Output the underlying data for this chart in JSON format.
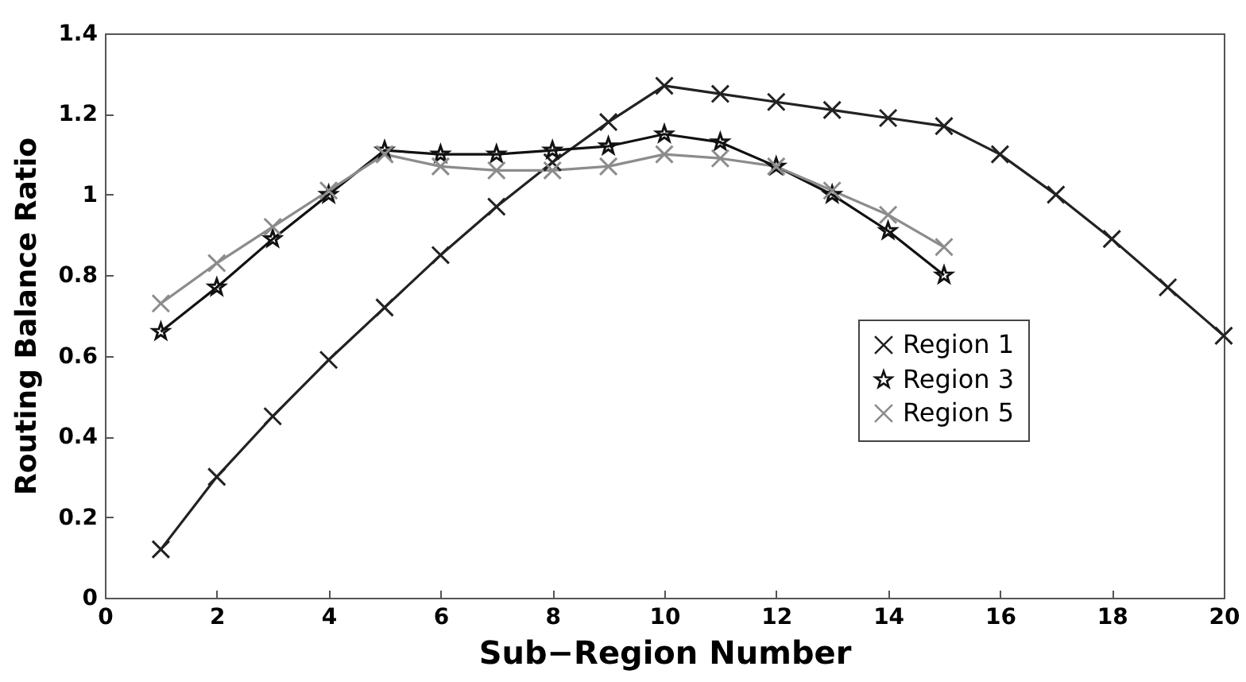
{
  "chart_data": {
    "type": "line",
    "xlabel": "Sub−Region Number",
    "ylabel": "Routing Balance Ratio",
    "xlim": [
      0,
      20
    ],
    "xticks": [
      0,
      2,
      4,
      6,
      8,
      10,
      12,
      14,
      16,
      18,
      20
    ],
    "ylim": [
      0,
      1.4
    ],
    "yticks": [
      0,
      0.2,
      0.4,
      0.6,
      0.8,
      1,
      1.2,
      1.4
    ],
    "grid": false,
    "legend": "right",
    "series": [
      {
        "name": "Region 1",
        "color": "#222222",
        "marker": "cross",
        "x": [
          1,
          2,
          3,
          4,
          5,
          6,
          7,
          8,
          9,
          10,
          11,
          12,
          13,
          14,
          15,
          16,
          17,
          18,
          19,
          20
        ],
        "values": [
          0.12,
          0.3,
          0.45,
          0.59,
          0.72,
          0.85,
          0.97,
          1.08,
          1.18,
          1.27,
          1.25,
          1.23,
          1.21,
          1.19,
          1.17,
          1.1,
          1.0,
          0.89,
          0.77,
          0.65
        ]
      },
      {
        "name": "Region 3",
        "color": "#111111",
        "marker": "star",
        "x": [
          1,
          2,
          3,
          4,
          5,
          6,
          7,
          8,
          9,
          10,
          11,
          12,
          13,
          14,
          15
        ],
        "values": [
          0.66,
          0.77,
          0.89,
          1.0,
          1.11,
          1.1,
          1.1,
          1.11,
          1.12,
          1.15,
          1.13,
          1.07,
          1.0,
          0.91,
          0.8
        ]
      },
      {
        "name": "Region 5",
        "color": "#8c8c8c",
        "marker": "cross",
        "x": [
          1,
          2,
          3,
          4,
          5,
          6,
          7,
          8,
          9,
          10,
          11,
          12,
          13,
          14,
          15
        ],
        "values": [
          0.73,
          0.83,
          0.92,
          1.01,
          1.1,
          1.07,
          1.06,
          1.06,
          1.07,
          1.1,
          1.09,
          1.07,
          1.01,
          0.95,
          0.87
        ]
      }
    ]
  }
}
